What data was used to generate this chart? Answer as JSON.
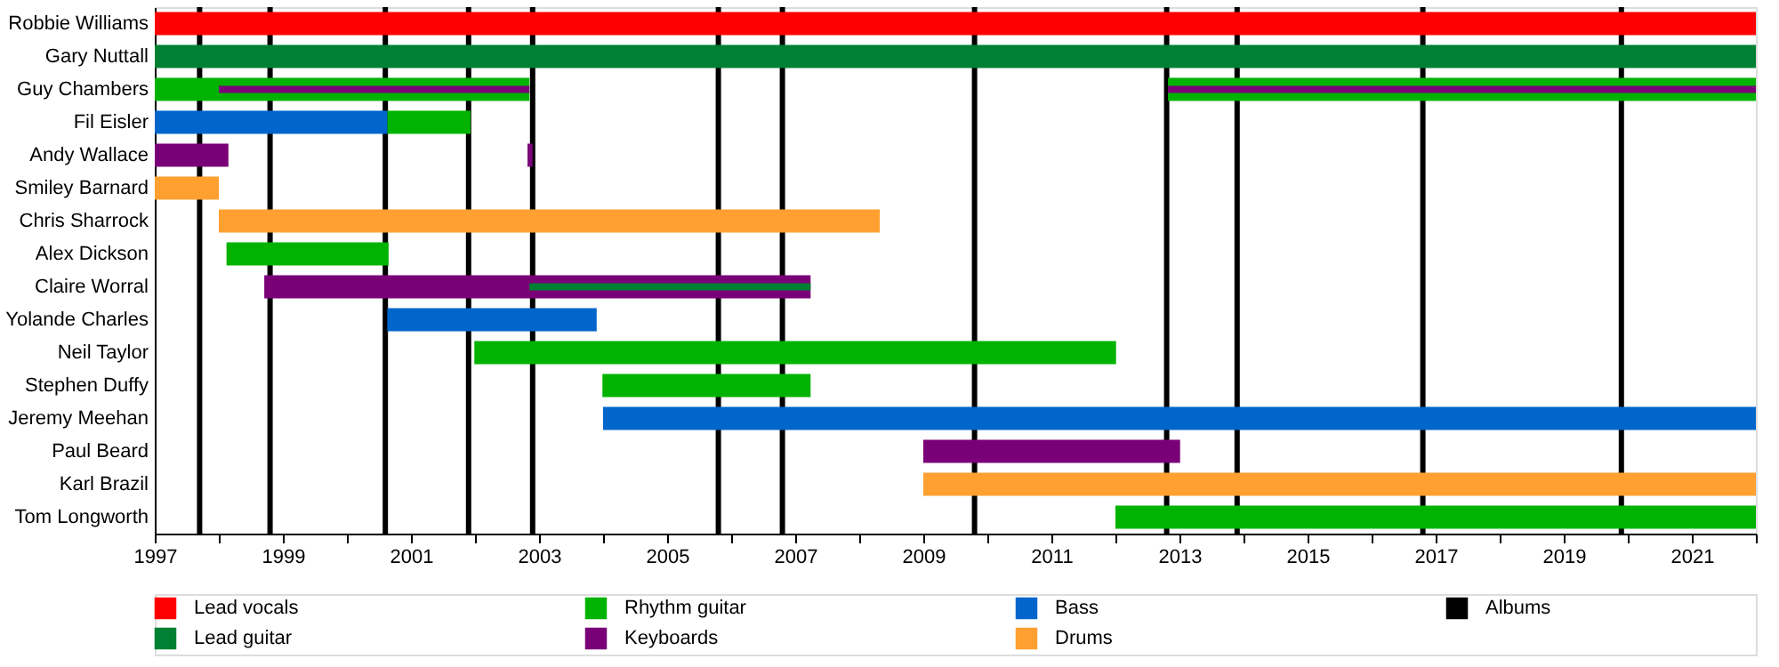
{
  "chart_data": {
    "type": "bar",
    "orientation": "horizontal",
    "categories": [
      "Robbie Williams",
      "Gary Nuttall",
      "Guy Chambers",
      "Fil Eisler",
      "Andy Wallace",
      "Smiley Barnard",
      "Chris Sharrock",
      "Alex Dickson",
      "Claire Worral",
      "Yolande Charles",
      "Neil Taylor",
      "Stephen Duffy",
      "Jeremy Meehan",
      "Paul Beard",
      "Karl Brazil",
      "Tom Longworth"
    ],
    "series": [
      {
        "name": "Lead vocals",
        "color": "#ff0000",
        "base": [
          1997,
          null,
          null,
          null,
          null,
          null,
          null,
          null,
          null,
          null,
          null,
          null,
          null,
          null,
          null,
          null
        ],
        "values": [
          25,
          null,
          null,
          null,
          null,
          null,
          null,
          null,
          null,
          null,
          null,
          null,
          null,
          null,
          null,
          null
        ]
      },
      {
        "name": "Lead guitar",
        "color": "#008033",
        "base": [
          null,
          1997,
          null,
          null,
          null,
          null,
          null,
          null,
          2002.85,
          null,
          null,
          null,
          null,
          null,
          null,
          null
        ],
        "values": [
          null,
          25,
          null,
          null,
          null,
          null,
          null,
          null,
          4.39,
          null,
          null,
          null,
          null,
          null,
          null,
          null
        ]
      },
      {
        "name": "Rhythm guitar",
        "color": "#00b300",
        "base": [
          null,
          null,
          1997,
          2000.63,
          null,
          null,
          null,
          1998.12,
          null,
          null,
          2001.99,
          2003.99,
          null,
          null,
          null,
          2012.0
        ],
        "values": [
          null,
          null,
          5.85,
          1.3,
          null,
          null,
          null,
          2.53,
          null,
          null,
          10.02,
          3.25,
          null,
          null,
          null,
          10.0
        ]
      },
      {
        "name": "Keyboards",
        "color": "#7a0078",
        "base": [
          null,
          null,
          1998.0,
          null,
          1997,
          null,
          null,
          null,
          1998.71,
          null,
          null,
          null,
          null,
          2009.0,
          null,
          null
        ],
        "values": [
          null,
          null,
          4.85,
          null,
          1.15,
          null,
          null,
          null,
          8.53,
          null,
          null,
          null,
          null,
          4.01,
          null,
          null
        ]
      },
      {
        "name": "Bass",
        "color": "#0066cc",
        "base": [
          null,
          null,
          null,
          1997,
          null,
          null,
          null,
          null,
          null,
          2000.63,
          null,
          null,
          2004.0,
          null,
          null,
          null
        ],
        "values": [
          null,
          null,
          null,
          3.63,
          null,
          null,
          null,
          null,
          null,
          3.27,
          null,
          null,
          18.0,
          null,
          null,
          null
        ]
      },
      {
        "name": "Drums",
        "color": "#ffa030",
        "base": [
          null,
          null,
          null,
          null,
          null,
          1997,
          1998.0,
          null,
          null,
          null,
          null,
          null,
          null,
          null,
          2009.0,
          null
        ],
        "values": [
          null,
          null,
          null,
          null,
          null,
          1.0,
          10.32,
          null,
          null,
          null,
          null,
          null,
          null,
          null,
          13.0,
          null
        ]
      },
      {
        "color": "#00b300",
        "base": [
          null,
          null,
          2012.82,
          null,
          null,
          null,
          null,
          null,
          null,
          null,
          null,
          null,
          null,
          null,
          null,
          null
        ],
        "values": [
          null,
          null,
          9.18,
          null,
          null,
          null,
          null,
          null,
          null,
          null,
          null,
          null,
          null,
          null,
          null,
          null
        ]
      },
      {
        "color": "#7a0078",
        "base": [
          null,
          null,
          2012.82,
          null,
          2002.82,
          null,
          null,
          null,
          null,
          null,
          null,
          null,
          null,
          null,
          null,
          null
        ],
        "values": [
          null,
          null,
          9.18,
          null,
          0.08,
          null,
          null,
          null,
          null,
          null,
          null,
          null,
          null,
          null,
          null,
          null
        ]
      }
    ],
    "xlim": [
      1997,
      2022
    ],
    "xticks": [
      1997,
      {
        "value": 1998,
        "label": null
      },
      1999,
      {
        "value": 2000,
        "label": null
      },
      2001,
      {
        "value": 2002,
        "label": null
      },
      2003,
      {
        "value": 2004,
        "label": null
      },
      2005,
      {
        "value": 2006,
        "label": null
      },
      2007,
      {
        "value": 2008,
        "label": null
      },
      2009,
      {
        "value": 2010,
        "label": null
      },
      2011,
      {
        "value": 2012,
        "label": null
      },
      2013,
      {
        "value": 2014,
        "label": null
      },
      2015,
      {
        "value": 2016,
        "label": null
      },
      2017,
      {
        "value": 2018,
        "label": null
      },
      2019,
      {
        "value": 2020,
        "label": null
      },
      2021,
      {
        "value": 2022,
        "label": null
      }
    ],
    "ref_lines": [
      {
        "axis": "x",
        "value": 1997.7,
        "label": "Albums",
        "color": "#000000"
      },
      {
        "axis": "x",
        "value": 1998.8,
        "color": "#000000"
      },
      {
        "axis": "x",
        "value": 2000.6,
        "color": "#000000"
      },
      {
        "axis": "x",
        "value": 2001.9,
        "color": "#000000"
      },
      {
        "axis": "x",
        "value": 2002.9,
        "color": "#000000"
      },
      {
        "axis": "x",
        "value": 2005.8,
        "color": "#000000"
      },
      {
        "axis": "x",
        "value": 2006.8,
        "color": "#000000"
      },
      {
        "axis": "x",
        "value": 2009.8,
        "color": "#000000"
      },
      {
        "axis": "x",
        "value": 2012.8,
        "color": "#000000"
      },
      {
        "axis": "x",
        "value": 2013.9,
        "color": "#000000"
      },
      {
        "axis": "x",
        "value": 2016.8,
        "color": "#000000"
      },
      {
        "axis": "x",
        "value": 2019.9,
        "color": "#000000"
      }
    ],
    "grid": false,
    "legend": "bottom"
  }
}
